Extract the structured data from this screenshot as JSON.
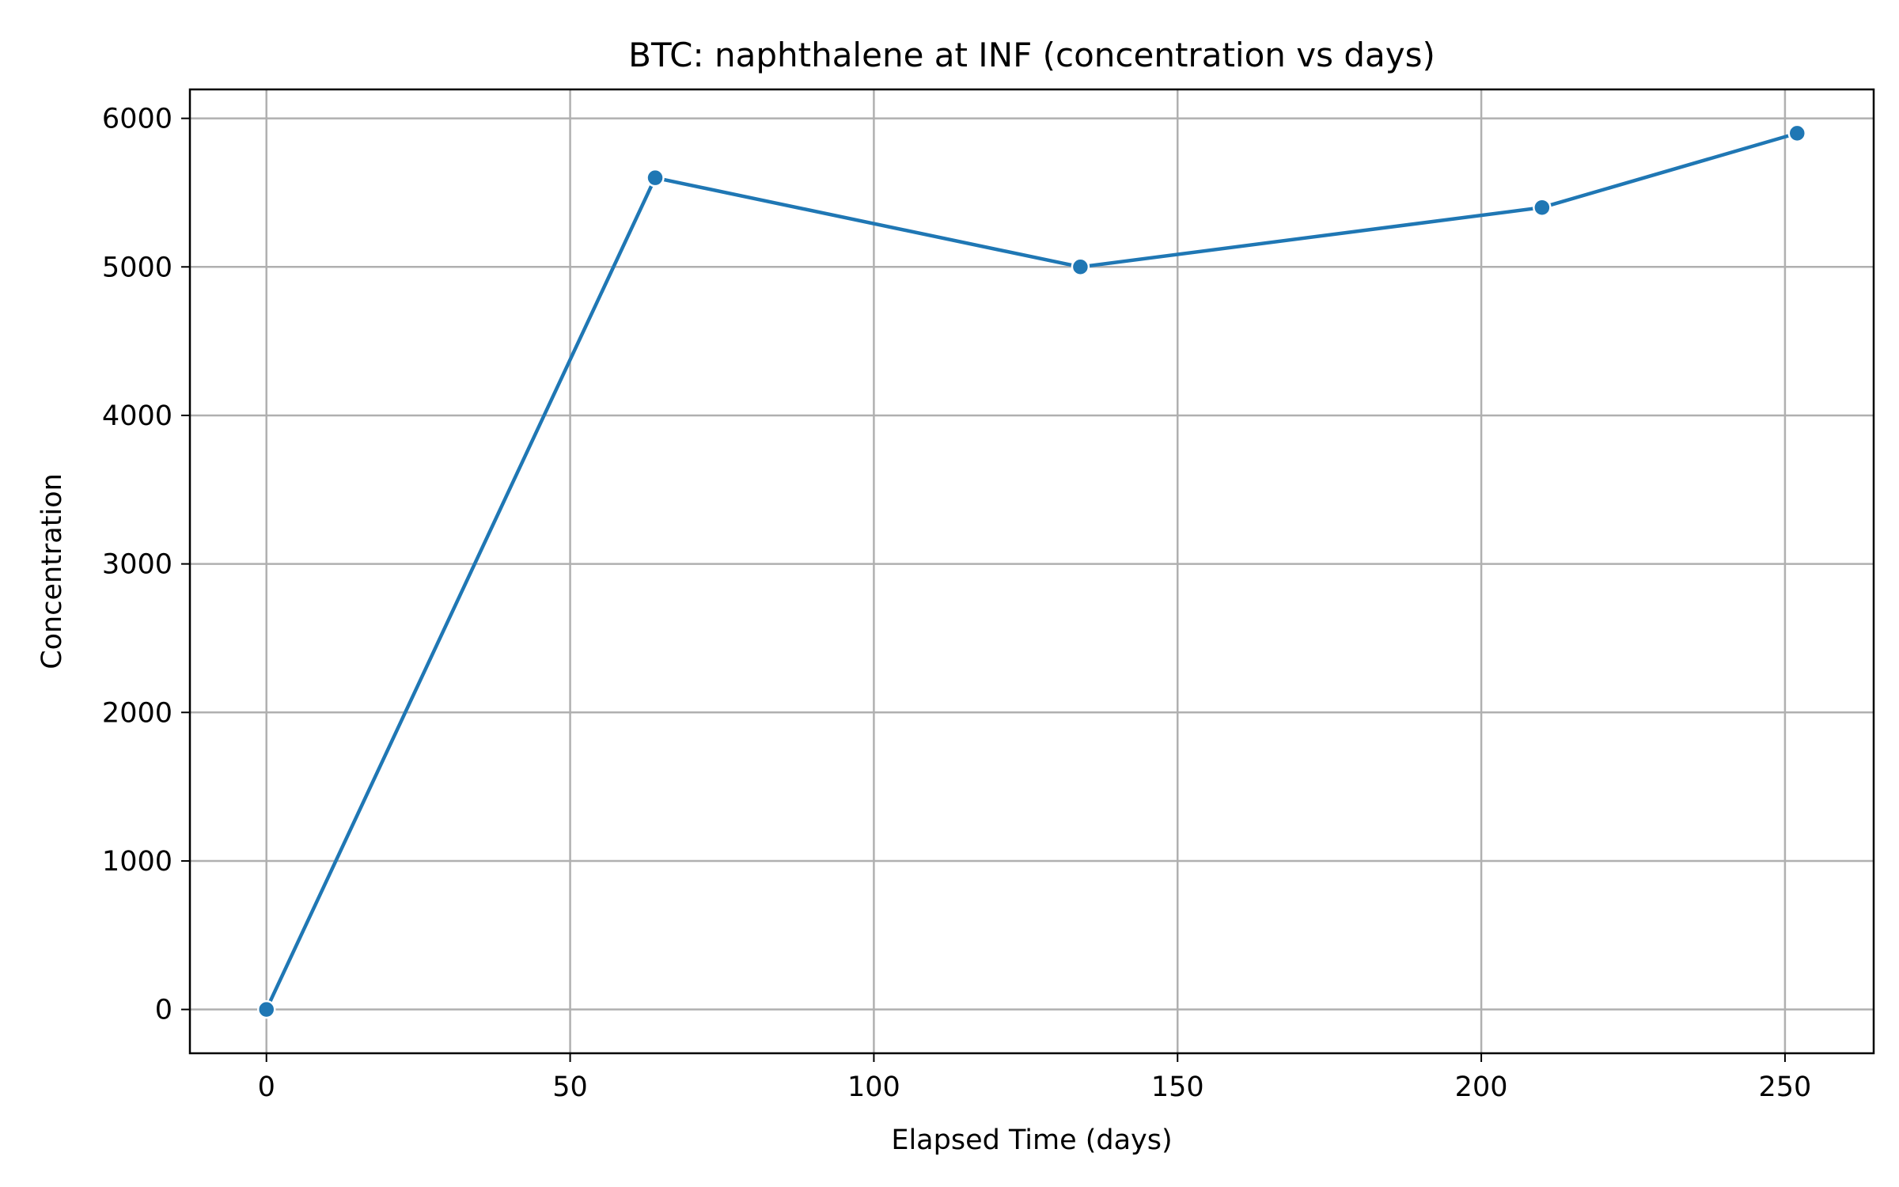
{
  "chart_data": {
    "type": "line",
    "title": "BTC: naphthalene at INF (concentration vs days)",
    "xlabel": "Elapsed Time (days)",
    "ylabel": "Concentration",
    "xlim": [
      -12.6,
      264.6
    ],
    "ylim": [
      -295,
      6195
    ],
    "xticks": [
      0,
      50,
      100,
      150,
      200,
      250
    ],
    "yticks": [
      0,
      1000,
      2000,
      3000,
      4000,
      5000,
      6000
    ],
    "grid": true,
    "legend": false,
    "series": [
      {
        "color": "#1f77b4",
        "marker": "circle",
        "x": [
          0,
          64,
          134,
          210,
          252
        ],
        "y": [
          0,
          5600,
          5000,
          5400,
          5900
        ]
      }
    ]
  }
}
